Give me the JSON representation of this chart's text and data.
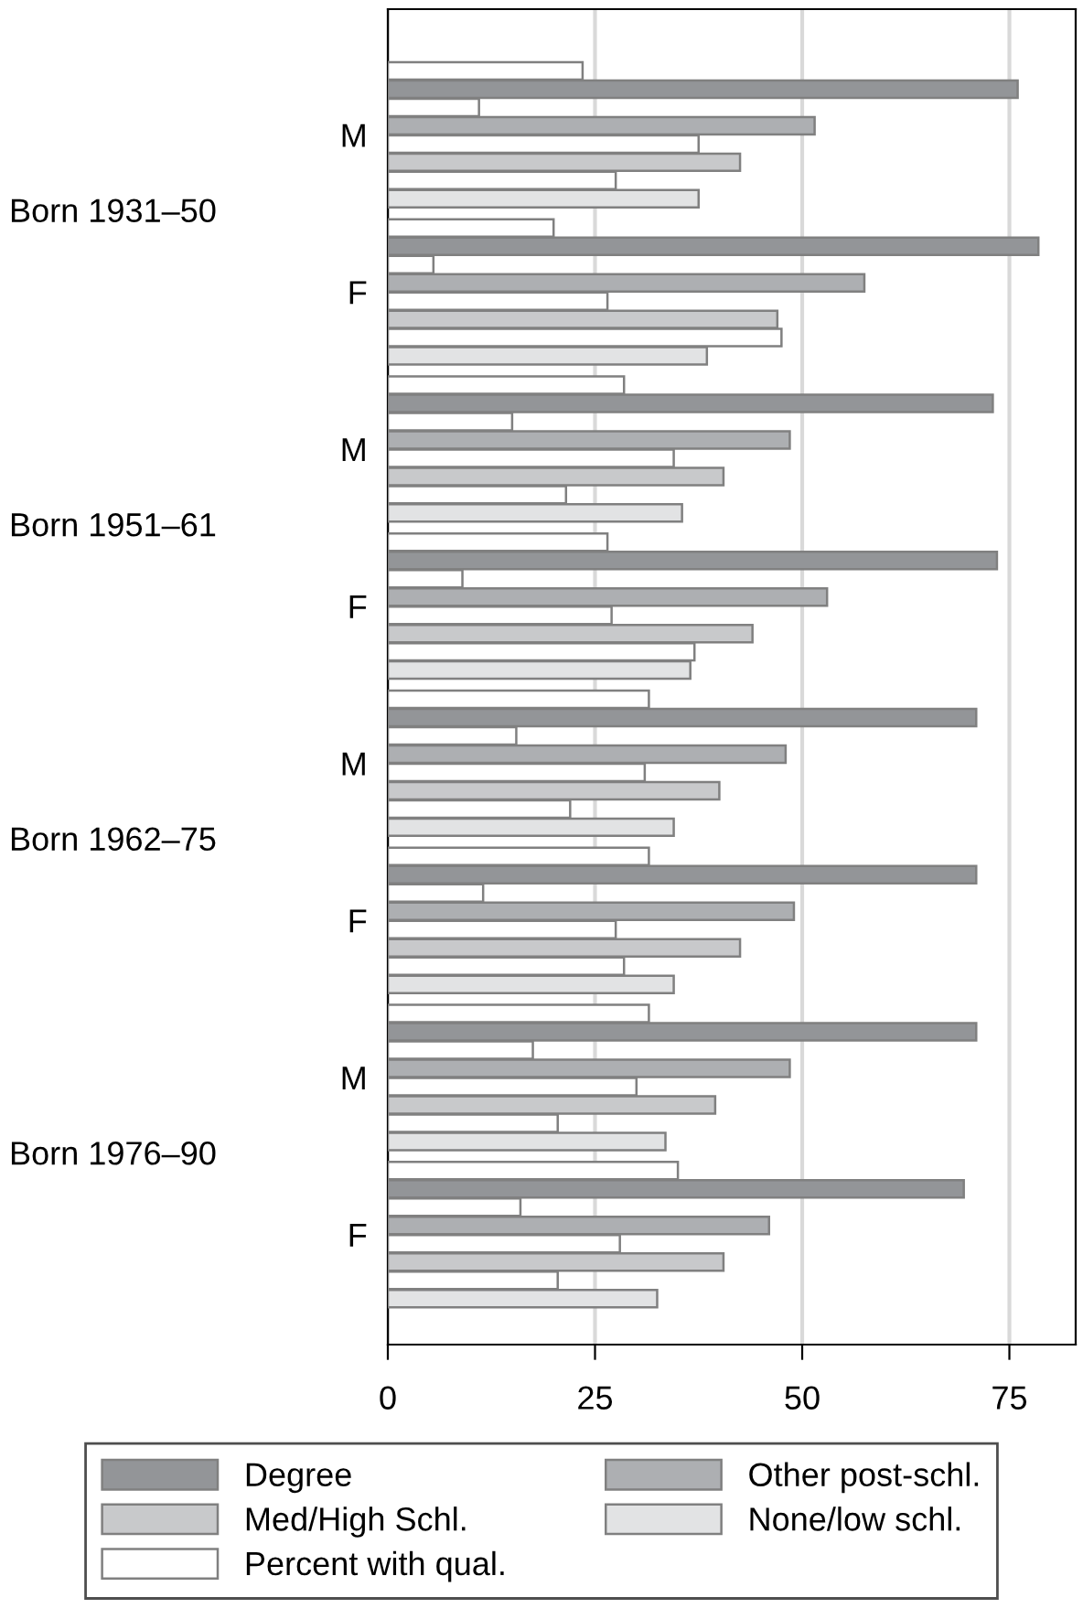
{
  "chart_data": {
    "type": "bar",
    "orientation": "horizontal",
    "categories": [
      "M",
      "F",
      "M",
      "F",
      "M",
      "F",
      "M",
      "F"
    ],
    "annotations": [
      "Born 1931–50",
      "Born 1951–61",
      "Born 1962–75",
      "Born 1976–90"
    ],
    "series": [
      {
        "name": "Degree",
        "color": "#939598",
        "values": [
          76.0,
          78.5,
          73.0,
          73.5,
          71.0,
          71.0,
          71.0,
          69.5
        ]
      },
      {
        "name": "Other post-schl.",
        "color": "#adafb2",
        "values": [
          51.5,
          57.5,
          48.5,
          53.0,
          48.0,
          49.0,
          48.5,
          46.0
        ]
      },
      {
        "name": "Med/High Schl.",
        "color": "#c8c9cb",
        "values": [
          42.5,
          47.0,
          40.5,
          44.0,
          40.0,
          42.5,
          39.5,
          40.5
        ]
      },
      {
        "name": "None/low schl.",
        "color": "#e2e3e4",
        "values": [
          37.5,
          38.5,
          35.5,
          36.5,
          34.5,
          34.5,
          33.5,
          32.5
        ]
      },
      {
        "name": "Percent with qual.",
        "color": "#ffffff",
        "values": [
          23.5,
          20.0,
          28.5,
          26.5,
          31.5,
          31.5,
          31.5,
          35.0
        ]
      },
      {
        "color": "#ffffff",
        "values": [
          11.0,
          5.5,
          15.0,
          9.0,
          15.5,
          11.5,
          17.5,
          16.0
        ]
      },
      {
        "color": "#ffffff",
        "values": [
          37.5,
          26.5,
          34.5,
          27.0,
          31.0,
          27.5,
          30.0,
          28.0
        ]
      },
      {
        "color": "#ffffff",
        "values": [
          27.5,
          47.5,
          21.5,
          37.0,
          22.0,
          28.5,
          20.5,
          20.5
        ]
      }
    ],
    "xlim": [
      0,
      83
    ],
    "xticks": [
      0,
      25,
      50,
      75
    ],
    "grid": "x",
    "legend": "bottom"
  }
}
